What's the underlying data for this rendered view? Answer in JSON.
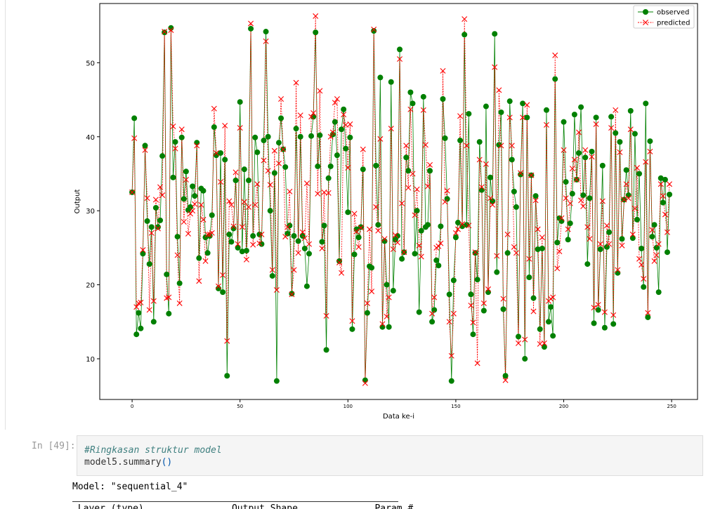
{
  "chart_data": {
    "type": "line",
    "xlabel": "Data ke-i",
    "ylabel": "Output",
    "xlim": [
      -15,
      262
    ],
    "ylim": [
      4.5,
      58
    ],
    "xticks": [
      0,
      50,
      100,
      150,
      200,
      250
    ],
    "yticks": [
      10,
      20,
      30,
      40,
      50
    ],
    "legend_position": "top-right",
    "series": [
      {
        "name": "observed",
        "color": "#008000",
        "marker": "circle",
        "line": "solid",
        "values": [
          32.5,
          42.5,
          13.3,
          16.2,
          14.1,
          24.2,
          38.8,
          28.6,
          22.8,
          27.8,
          15.0,
          30.4,
          27.8,
          28.7,
          37.4,
          54.1,
          21.4,
          16.1,
          54.7,
          34.5,
          39.3,
          26.5,
          20.2,
          39.9,
          31.6,
          35.3,
          30.1,
          30.5,
          33.3,
          32.0,
          39.2,
          23.6,
          33.0,
          32.7,
          26.4,
          24.3,
          26.6,
          29.4,
          41.3,
          37.5,
          19.5,
          37.8,
          19.0,
          36.9,
          7.7,
          26.8,
          25.8,
          27.6,
          34.1,
          25.0,
          44.7,
          24.5,
          35.6,
          24.6,
          34.1,
          54.6,
          26.6,
          39.9,
          37.9,
          26.8,
          25.5,
          39.5,
          54.2,
          40.0,
          30.0,
          21.2,
          35.1,
          7.0,
          39.2,
          42.5,
          38.3,
          35.9,
          26.9,
          28.0,
          18.8,
          26.6,
          41.1,
          25.9,
          40.0,
          26.6,
          24.9,
          19.8,
          24.2,
          40.1,
          42.7,
          54.1,
          36.0,
          40.2,
          25.8,
          28.0,
          11.2,
          34.4,
          36.0,
          40.3,
          42.0,
          37.5,
          23.2,
          41.0,
          43.7,
          38.4,
          29.8,
          39.9,
          14.0,
          24.1,
          27.5,
          26.4,
          27.8,
          35.6,
          7.1,
          16.2,
          22.5,
          22.3,
          54.3,
          36.1,
          28.1,
          48.0,
          14.3,
          25.9,
          20.0,
          14.3,
          47.4,
          19.2,
          26.1,
          26.6,
          51.8,
          23.5,
          24.4,
          37.2,
          35.4,
          46.0,
          44.5,
          24.2,
          30.0,
          16.3,
          27.3,
          45.4,
          27.8,
          28.1,
          35.4,
          15.0,
          16.6,
          23.3,
          22.6,
          27.9,
          45.1,
          39.8,
          31.6,
          18.7,
          7.0,
          20.6,
          26.4,
          28.4,
          39.5,
          27.9,
          53.8,
          28.1,
          43.1,
          18.7,
          13.3,
          24.3,
          20.7,
          39.3,
          32.8,
          16.5,
          44.1,
          19.0,
          34.5,
          31.3,
          53.9,
          21.7,
          38.9,
          43.3,
          16.7,
          7.7,
          24.3,
          44.8,
          36.9,
          32.6,
          30.5,
          13.0,
          34.9,
          44.5,
          10.0,
          42.6,
          21.0,
          34.8,
          18.2,
          32.0,
          24.8,
          14.0,
          24.9,
          11.6,
          43.6,
          15.0,
          17.0,
          13.1,
          47.8,
          25.7,
          29.0,
          28.6,
          42.0,
          33.9,
          26.1,
          28.3,
          32.3,
          43.0,
          34.2,
          37.8,
          44.0,
          32.1,
          37.2,
          22.8,
          31.7,
          38.0,
          14.8,
          42.6,
          16.6,
          24.8,
          36.1,
          14.2,
          25.1,
          27.1,
          42.7,
          14.7,
          40.5,
          21.6,
          39.3,
          26.2,
          31.5,
          35.5,
          32.1,
          43.5,
          26.3,
          40.4,
          28.8,
          35.0,
          24.9,
          19.7,
          44.5,
          15.6,
          39.4,
          26.5,
          28.1,
          25.0,
          19.0,
          34.4,
          31.1,
          34.2,
          24.4,
          32.2
        ]
      },
      {
        "name": "predicted",
        "color": "#ff0000",
        "marker": "x",
        "line": "dashed",
        "values": [
          32.5,
          39.8,
          17.0,
          17.5,
          17.6,
          24.7,
          38.2,
          31.7,
          16.6,
          27.0,
          17.8,
          31.5,
          27.6,
          33.2,
          32.1,
          54.2,
          18.2,
          18.3,
          54.4,
          41.4,
          38.4,
          24.0,
          17.5,
          41.0,
          28.5,
          34.2,
          26.9,
          29.6,
          30.0,
          30.9,
          38.8,
          20.5,
          30.8,
          28.8,
          23.2,
          26.8,
          26.8,
          27.0,
          43.8,
          37.8,
          19.8,
          33.9,
          21.3,
          41.5,
          12.4,
          31.3,
          30.8,
          27.9,
          35.2,
          25.5,
          41.2,
          27.8,
          31.2,
          23.4,
          30.5,
          55.3,
          25.4,
          30.8,
          33.6,
          25.6,
          26.8,
          36.8,
          52.9,
          35.4,
          33.5,
          22.0,
          38.1,
          19.3,
          36.4,
          45.1,
          38.3,
          26.5,
          27.8,
          32.6,
          18.7,
          22.0,
          47.3,
          24.3,
          42.9,
          27.1,
          26.3,
          33.7,
          25.5,
          42.7,
          43.2,
          56.3,
          32.3,
          46.2,
          24.9,
          32.5,
          15.8,
          32.4,
          40.0,
          40.6,
          44.6,
          45.1,
          23.0,
          21.6,
          43.0,
          41.6,
          35.8,
          41.7,
          15.1,
          29.6,
          27.2,
          25.1,
          27.7,
          38.3,
          6.7,
          17.5,
          27.5,
          19.1,
          54.5,
          30.5,
          27.3,
          39.7,
          14.7,
          26.2,
          15.7,
          18.3,
          41.1,
          24.8,
          26.7,
          25.7,
          50.5,
          31.0,
          24.4,
          38.8,
          33.1,
          43.7,
          35.0,
          29.4,
          32.9,
          25.3,
          23.8,
          43.6,
          38.9,
          33.3,
          36.2,
          16.1,
          18.3,
          25.0,
          25.2,
          25.6,
          48.9,
          31.2,
          32.7,
          15.0,
          10.4,
          16.1,
          27.0,
          27.5,
          42.8,
          28.2,
          55.9,
          38.8,
          28.0,
          17.2,
          14.9,
          24.4,
          9.4,
          36.9,
          33.2,
          17.5,
          36.3,
          19.4,
          31.7,
          30.8,
          49.4,
          23.9,
          46.3,
          38.8,
          18.1,
          7.1,
          26.8,
          42.6,
          38.8,
          25.1,
          24.3,
          12.1,
          35.1,
          42.6,
          12.6,
          44.3,
          23.5,
          34.8,
          16.4,
          31.4,
          27.5,
          12.0,
          26.4,
          12.1,
          41.6,
          17.8,
          18.1,
          18.3,
          51.0,
          22.2,
          24.5,
          29.0,
          38.2,
          31.7,
          27.5,
          31.0,
          35.7,
          36.9,
          34.2,
          40.6,
          31.4,
          30.6,
          38.2,
          27.8,
          26.2,
          37.3,
          16.9,
          41.7,
          17.3,
          25.5,
          31.3,
          16.3,
          28.0,
          25.5,
          41.2,
          15.9,
          43.6,
          22.0,
          37.9,
          25.3,
          31.5,
          33.6,
          31.7,
          41.0,
          26.8,
          30.3,
          35.8,
          23.5,
          22.7,
          20.8,
          36.6,
          16.2,
          38.0,
          27.4,
          23.2,
          24.0,
          25.5,
          33.6,
          32.0,
          29.5,
          27.1,
          33.6
        ]
      }
    ]
  },
  "cell": {
    "prompt": "In [49]:",
    "code_comment": "#Ringkasan struktur model",
    "code_obj": "model5.summary",
    "code_call": "()"
  },
  "output": {
    "model_line": "Model: \"sequential_4\"",
    "table_header": " Layer (type)                Output Shape              Param #"
  }
}
